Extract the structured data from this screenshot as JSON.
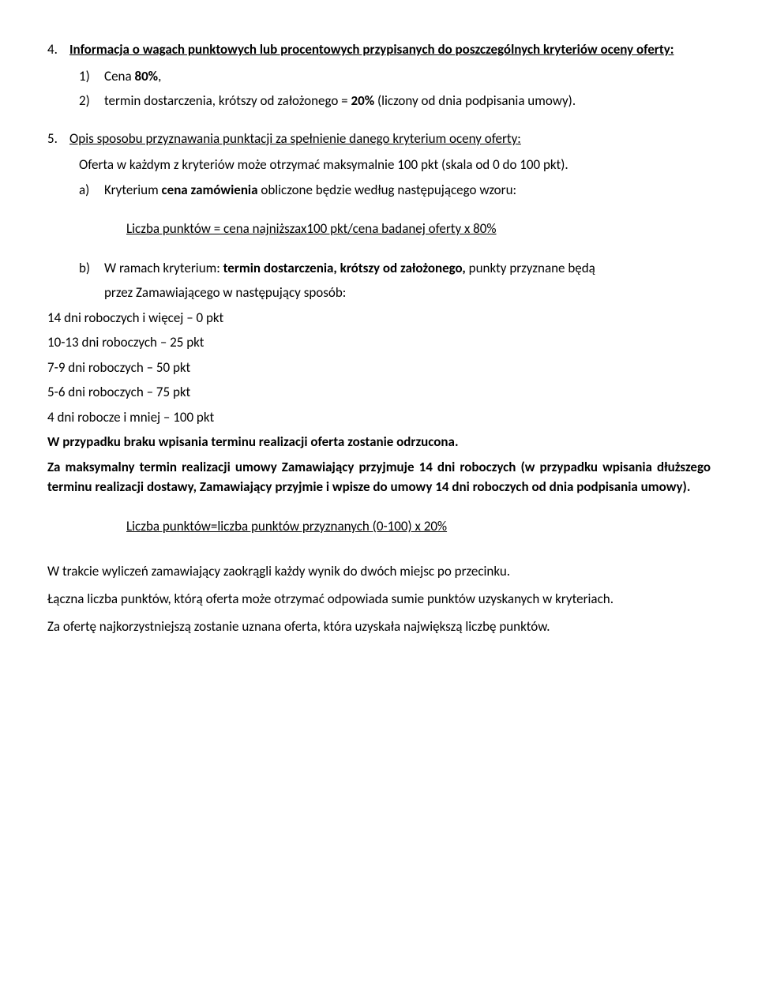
{
  "s4": {
    "num": "4.",
    "heading": "Informacja o wagach punktowych lub procentowych przypisanych do poszczególnych kryteriów oceny oferty:",
    "item1_marker": "1)",
    "item1_text_a": "Cena ",
    "item1_text_b": "80%",
    "item1_text_c": ",",
    "item2_marker": "2)",
    "item2_text_a": "termin dostarczenia, krótszy od założonego = ",
    "item2_text_b": "20% ",
    "item2_text_c": "(liczony od dnia podpisania umowy)."
  },
  "s5": {
    "num": "5.",
    "heading": "Opis sposobu przyznawania punktacji za spełnienie danego kryterium oceny oferty:",
    "intro": "Oferta w każdym z kryteriów może otrzymać maksymalnie 100 pkt (skala od 0 do 100 pkt).",
    "a_marker": "a)",
    "a_text_a": "Kryterium ",
    "a_text_b": "cena zamówienia",
    "a_text_c": " obliczone będzie według następującego wzoru:",
    "formula_a": "Liczba punktów = cena najniższax100 pkt/cena badanej oferty x 80%",
    "b_marker": "b)",
    "b_text_a": "W ramach kryterium: ",
    "b_text_b": "termin dostarczenia, krótszy od założonego,",
    "b_text_c": " punkty przyznane będą",
    "b_line2": "przez Zamawiającego w następujący sposób:",
    "l1": "14 dni roboczych i więcej – 0 pkt",
    "l2": "10-13 dni roboczych – 25 pkt",
    "l3": "7-9 dni roboczych – 50 pkt",
    "l4": "5-6 dni roboczych – 75 pkt",
    "l5": "4 dni robocze i mniej – 100 pkt",
    "rej": "W przypadku braku wpisania terminu realizacji oferta zostanie odrzucona.",
    "max": "Za maksymalny termin realizacji umowy Zamawiający przyjmuje 14 dni roboczych (w przypadku wpisania dłuższego terminu realizacji dostawy, Zamawiający przyjmie i wpisze do umowy 14 dni roboczych od dnia podpisania umowy).",
    "formula_b": "Liczba punktów=liczba punktów przyznanych (0-100) x 20%",
    "p1": "W trakcie wyliczeń zamawiający zaokrągli każdy wynik do dwóch miejsc po przecinku.",
    "p2": "Łączna liczba punktów, którą oferta może otrzymać odpowiada sumie punktów uzyskanych w kryteriach.",
    "p3": "Za ofertę najkorzystniejszą zostanie uznana oferta, która uzyskała największą liczbę punktów."
  }
}
